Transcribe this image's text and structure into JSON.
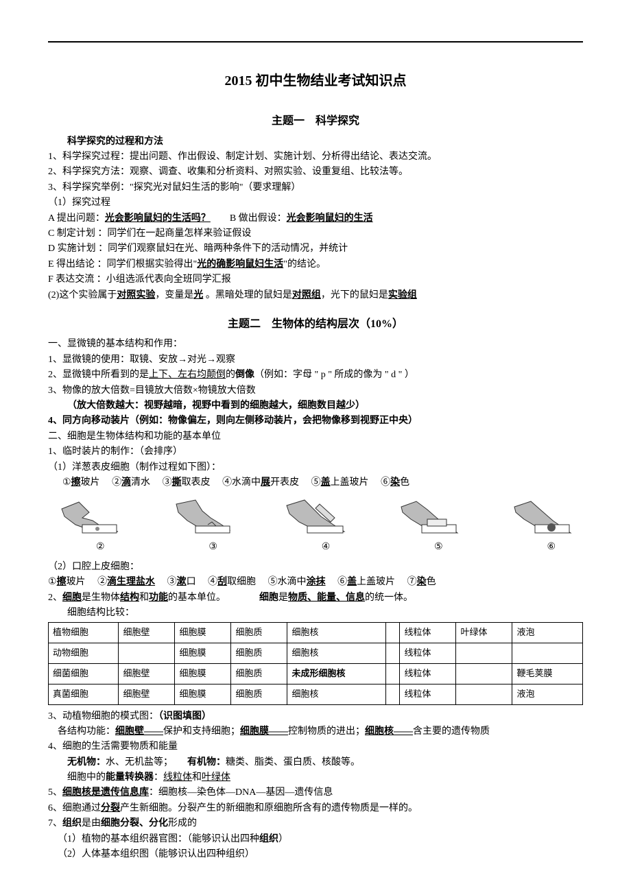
{
  "title": "2015 初中生物结业考试知识点",
  "topic1": {
    "heading": "主题一　科学探究",
    "sub": "科学探究的过程和方法",
    "l1": "1、科学探究过程：提出问题、作出假设、制定计划、实施计划、分析得出结论、表达交流。",
    "l2": "2、科学探究方法：观察、调查、收集和分析资料、对照实验、设重复组、比较法等。",
    "l3": "3、科学探究举例：\"探究光对鼠妇生活的影响\"（要求理解）",
    "l3a": "（1）探究过程",
    "A_pre": "A 提出问题：",
    "A_ul": "光会影响鼠妇的生活吗？",
    "A_gap": "　　B 做出假设：",
    "A_ul2": "光会影响鼠妇的生活",
    "C": "C 制定计划 ：同学们在一起商量怎样来验证假设",
    "D": "D 实施计划 ：同学们观察鼠妇在光、暗两种条件下的活动情况，并统计",
    "E_pre": "E 得出结论 ：同学们根据实验得出\"",
    "E_ul": "光的确影响鼠妇生活",
    "E_post": "\"的结论。",
    "F": "F 表达交流 ：小组选派代表向全班同学汇报",
    "p2_pre": "(2)这个实验属于",
    "p2_u1": "对照实验",
    "p2_mid1": "，变量是",
    "p2_u2": "光",
    "p2_mid2": " 。黑暗处理的鼠妇是",
    "p2_u3": "对照组",
    "p2_mid3": "，光下的鼠妇是",
    "p2_u4": "实验组"
  },
  "topic2": {
    "heading": "主题二　生物体的结构层次（10%）",
    "s1": "一、显微镜的基本结构和作用：",
    "s1_1": "1、显微镜的使用：取镜、安放→对光→观察",
    "s1_2_pre": "2、显微镜中所看到的是",
    "s1_2_ul": "上下、左右均颠倒",
    "s1_2_mid": "的",
    "s1_2_b": "倒像",
    "s1_2_post": "（例如：字母 \" p \" 所成的像为 \" d \" ）",
    "s1_3": "3、物像的放大倍数=目镜放大倍数×物镜放大倍数",
    "s1_3b": "（放大倍数越大：视野越暗，视野中看到的细胞越大，细胞数目越少）",
    "s1_4": "4、同方向移动装片（例如：物像偏左，则向左侧移动装片，会把物像移到视野正中央）",
    "s2": "二、细胞是生物体结构和功能的基本单位",
    "s2_1": "1、临时装片的制作：（会排序）",
    "s2_1a": "（1）洋葱表皮细胞（制作过程如下图）：",
    "steps1": {
      "a": "①",
      "a_ul": "擦",
      "a_post": "玻片",
      "b": "②",
      "b_ul": "滴",
      "b_post": "清水",
      "c": "③",
      "c_ul": "撕",
      "c_post": "取表皮",
      "d": "④水滴中",
      "d_ul": "展",
      "d_post": "开表皮",
      "e": "⑤",
      "e_ul": "盖",
      "e_post": "上盖玻片",
      "f": "⑥",
      "f_ul": "染",
      "f_post": "色"
    },
    "illus_labels": [
      "②",
      "③",
      "④",
      "⑤",
      "⑥"
    ],
    "s2_1b": "（2）口腔上皮细胞：",
    "steps2": {
      "a": "①",
      "a_ul": "擦",
      "a_post": "玻片",
      "b": "②",
      "b_ul": "滴生理盐水",
      "c": "③",
      "c_ul": "漱",
      "c_post": "口",
      "d": "④",
      "d_ul": "刮",
      "d_post": "取细胞",
      "e": "⑤水滴中",
      "e_ul": "涂抹",
      "f": "⑥",
      "f_ul": "盖",
      "f_post": "上盖玻片",
      "g": "⑦",
      "g_ul": "染",
      "g_post": "色"
    },
    "s2_2_pre": "2、",
    "s2_2_u1": "细胞",
    "s2_2_m1": "是生物体",
    "s2_2_u2": "结构",
    "s2_2_m2": "和",
    "s2_2_u3": "功能",
    "s2_2_m3": "的基本单位。",
    "s2_2_gap": "　　　　",
    "s2_2_b1": "细胞",
    "s2_2_m4": "是",
    "s2_2_b2": "物质、能量、信息",
    "s2_2_m5": "的统一体。",
    "tbl_intro": "　　细胞结构比较：",
    "table": {
      "rows": [
        [
          "植物细胞",
          "细胞壁",
          "细胞膜",
          "细胞质",
          "细胞核",
          "",
          "线粒体",
          "叶绿体",
          "液泡"
        ],
        [
          "动物细胞",
          "",
          "细胞膜",
          "细胞质",
          "细胞核",
          "",
          "线粒体",
          "",
          ""
        ],
        [
          "细菌细胞",
          "细胞壁",
          "细胞膜",
          "细胞质",
          "未成形细胞核",
          "",
          "线粒体",
          "",
          "鞭毛荚膜"
        ],
        [
          "真菌细胞",
          "细胞壁",
          "细胞膜",
          "细胞质",
          "细胞核",
          "",
          "线粒体",
          "",
          "液泡"
        ]
      ],
      "bold_cells": [
        [
          2,
          4
        ]
      ]
    },
    "s3_pre": "3、动植物细胞的模式图：",
    "s3_b": "（识图填图）",
    "s3a_pre": "　各结构功能：",
    "s3a_u1": "细胞壁——",
    "s3a_t1": "保护和支持细胞；",
    "s3a_u2": "细胞膜——",
    "s3a_t2": "控制物质的进出；",
    "s3a_u3": "细胞核——",
    "s3a_t3": "含主要的遗传物质",
    "s4": "4、细胞的生活需要物质和能量",
    "s4a_pre": "　　",
    "s4a_b1": "无机物：",
    "s4a_t1": "水、无机盐等；",
    "s4a_gap": "　　",
    "s4a_b2": "有机物：",
    "s4a_t2": "糖类、脂类、蛋白质、核酸等。",
    "s4b_pre": "　　细胞中的",
    "s4b_b": "能量转换器",
    "s4b_m": "：",
    "s4b_u1": "线粒体",
    "s4b_and": "和",
    "s4b_u2": "叶绿体",
    "s5_pre": "5、",
    "s5_b": "细胞核是遗传信息库",
    "s5_post": "：细胞核—染色体—DNA—基因—遗传信息",
    "s6_pre": "6、细胞通过",
    "s6_u": "分裂",
    "s6_post": "产生新细胞。分裂产生的新细胞和原细胞所含有的遗传物质是一样的。",
    "s7_pre": "7、",
    "s7_b1": "组织",
    "s7_m1": "是由",
    "s7_b2": "细胞分裂、分化",
    "s7_m2": "形成的",
    "s7a_pre": "（1）植物的基本组织器官图：（能够识认出四种",
    "s7a_b": "组织",
    "s7a_post": "）",
    "s7b": "（2）人体基本组织图（能够识认出四种组织）"
  }
}
